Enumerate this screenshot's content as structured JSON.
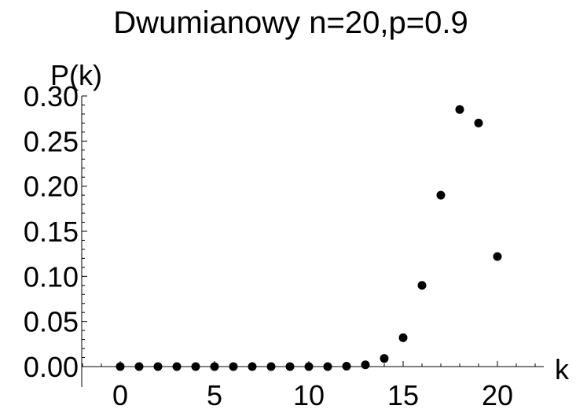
{
  "chart_data": {
    "type": "scatter",
    "title": "Dwumianowy n=20,p=0.9",
    "xlabel": "k",
    "ylabel": "P(k)",
    "xlim": [
      -2,
      22.5
    ],
    "ylim": [
      0,
      0.3
    ],
    "x_ticks": [
      0,
      5,
      10,
      15,
      20
    ],
    "x_tick_labels": [
      "0",
      "5",
      "10",
      "15",
      "20"
    ],
    "y_ticks": [
      0,
      0.05,
      0.1,
      0.15,
      0.2,
      0.25,
      0.3
    ],
    "y_tick_labels": [
      "0.00",
      "0.05",
      "0.10",
      "0.15",
      "0.20",
      "0.25",
      "0.30"
    ],
    "grid": false,
    "marker_color": "#000000",
    "x": [
      0,
      1,
      2,
      3,
      4,
      5,
      6,
      7,
      8,
      9,
      10,
      11,
      12,
      13,
      14,
      15,
      16,
      17,
      18,
      19,
      20
    ],
    "y": [
      0,
      0,
      0,
      0,
      0,
      0,
      0,
      0,
      0,
      0,
      0,
      0,
      0.0004,
      0.002,
      0.009,
      0.032,
      0.09,
      0.19,
      0.285,
      0.27,
      0.122
    ]
  }
}
